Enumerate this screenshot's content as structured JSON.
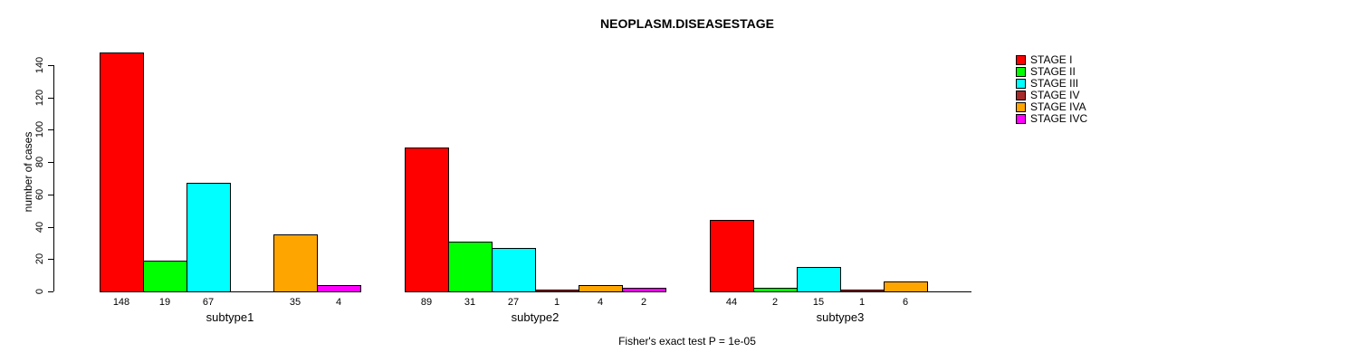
{
  "chart_data": {
    "type": "bar",
    "title": "NEOPLASM.DISEASESTAGE",
    "ylabel": "number of cases",
    "xlabel": "",
    "ylim": [
      0,
      140
    ],
    "yticks": [
      0,
      20,
      40,
      60,
      80,
      100,
      120,
      140
    ],
    "grid": false,
    "legend_position": "right",
    "stages": [
      "STAGE I",
      "STAGE II",
      "STAGE III",
      "STAGE IV",
      "STAGE IVA",
      "STAGE IVC"
    ],
    "legend": [
      {
        "label": "STAGE I",
        "color": "#FF0000"
      },
      {
        "label": "STAGE II",
        "color": "#00FF00"
      },
      {
        "label": "STAGE III",
        "color": "#00FFFF"
      },
      {
        "label": "STAGE IV",
        "color": "#A52A2A"
      },
      {
        "label": "STAGE IVA",
        "color": "#FFA500"
      },
      {
        "label": "STAGE IVC",
        "color": "#FF00FF"
      }
    ],
    "groups": [
      {
        "label": "subtype1",
        "values": [
          148,
          19,
          67,
          null,
          35,
          4
        ]
      },
      {
        "label": "subtype2",
        "values": [
          89,
          31,
          27,
          1,
          4,
          2
        ]
      },
      {
        "label": "subtype3",
        "values": [
          44,
          2,
          15,
          1,
          6,
          null
        ]
      }
    ],
    "annotation": "Fisher's exact test P = 1e-05"
  }
}
